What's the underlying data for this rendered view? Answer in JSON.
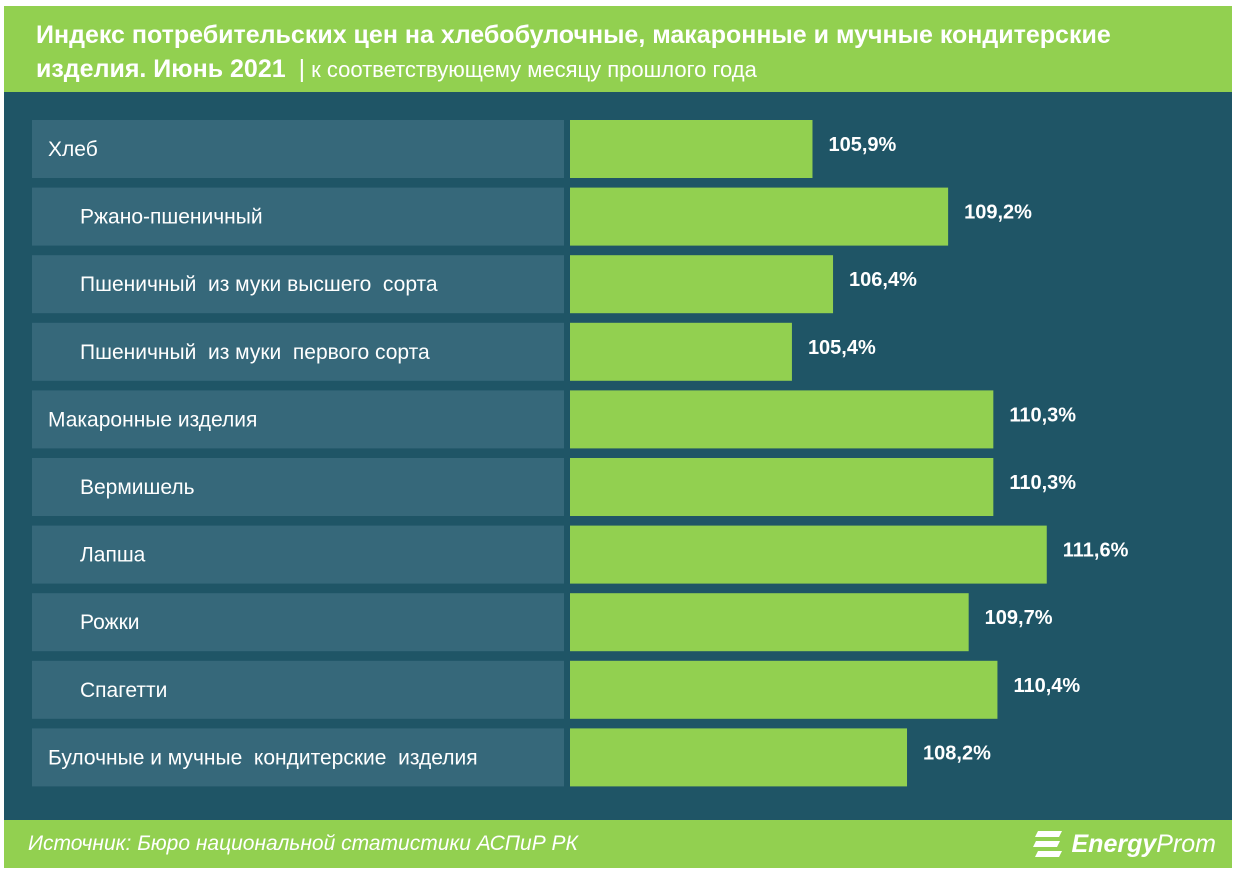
{
  "header": {
    "title": "Индекс потребительских цен на хлебобулочные, макаронные и мучные кондитерские изделия. Июнь 2021",
    "separator": "|",
    "subtitle": "к соответствующему  месяцу прошлого года"
  },
  "footer": {
    "source": "Источник: Бюро национальной  статистики АСПиР РК",
    "logo_bold": "Energy",
    "logo_light": "Prom"
  },
  "colors": {
    "background": "#1f5566",
    "accent": "#92d050",
    "label_box": "#36687a"
  },
  "chart_data": {
    "type": "bar",
    "orientation": "horizontal",
    "title": "Индекс потребительских цен на хлебобулочные, макаронные и мучные кондитерские изделия. Июнь 2021",
    "unit": "%",
    "baseline": 100,
    "categories": [
      {
        "label": "Хлеб",
        "level": 0,
        "value": 105.9,
        "value_label": "105,9%"
      },
      {
        "label": "Ржано-пшеничный",
        "level": 1,
        "value": 109.2,
        "value_label": "109,2%"
      },
      {
        "label": "Пшеничный  из муки высшего  сорта",
        "level": 1,
        "value": 106.4,
        "value_label": "106,4%"
      },
      {
        "label": "Пшеничный  из муки  первого сорта",
        "level": 1,
        "value": 105.4,
        "value_label": "105,4%"
      },
      {
        "label": "Макаронные изделия",
        "level": 0,
        "value": 110.3,
        "value_label": "110,3%"
      },
      {
        "label": "Вермишель",
        "level": 1,
        "value": 110.3,
        "value_label": "110,3%"
      },
      {
        "label": "Лапша",
        "level": 1,
        "value": 111.6,
        "value_label": "111,6%"
      },
      {
        "label": "Рожки",
        "level": 1,
        "value": 109.7,
        "value_label": "109,7%"
      },
      {
        "label": "Спагетти",
        "level": 1,
        "value": 110.4,
        "value_label": "110,4%"
      },
      {
        "label": "Булочные и мучные  кондитерские  изделия",
        "level": 0,
        "value": 108.2,
        "value_label": "108,2%"
      }
    ]
  }
}
